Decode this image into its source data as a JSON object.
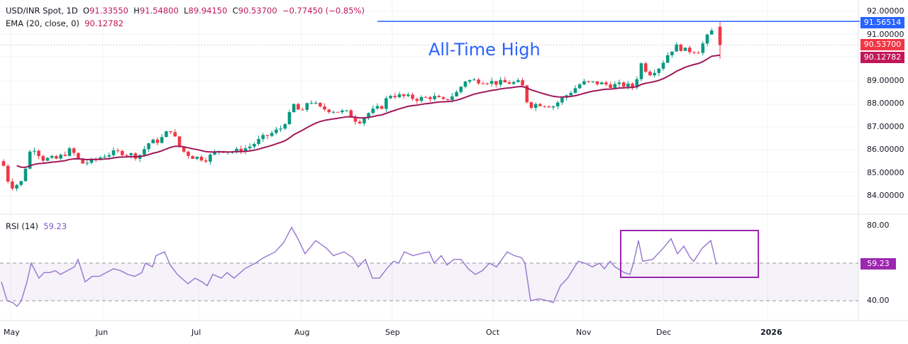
{
  "header": {
    "symbol": "USD/INR Spot, 1D",
    "open_label": "O",
    "open": "91.33550",
    "high_label": "H",
    "high": "91.54800",
    "low_label": "L",
    "low": "89.94150",
    "close_label": "C",
    "close": "90.53700",
    "change": "−0.77450 (−0.85%)",
    "ema_label": "EMA (20, close, 0)",
    "ema_value": "90.12782"
  },
  "annotation": "All-Time High",
  "rsi": {
    "label": "RSI (14)",
    "value": "59.23"
  },
  "price_tags": {
    "ath": {
      "text": "91.56514",
      "color": "#2962ff"
    },
    "close": {
      "text": "90.53700",
      "color": "#f23645"
    },
    "ema": {
      "text": "90.12782",
      "color": "#c2185b"
    },
    "rsi": {
      "text": "59.23",
      "color": "#9c27b0"
    }
  },
  "colors": {
    "up": "#089981",
    "down": "#f23645",
    "ema": "#a0185a",
    "rsi": "#9575cd",
    "ath_line": "#2962ff",
    "box": "#9c27b0"
  },
  "chart_data": [
    {
      "type": "candlestick",
      "title": "USD/INR Spot, 1D",
      "ylabel": "Price",
      "ylim": [
        83.6,
        92.2
      ],
      "y_ticks": [
        "92.00000",
        "91.00000",
        "90.00000",
        "89.00000",
        "88.00000",
        "87.00000",
        "86.00000",
        "85.00000",
        "84.00000"
      ],
      "x_ticks": [
        "May",
        "Jun",
        "Jul",
        "Aug",
        "Sep",
        "Oct",
        "Nov",
        "Dec",
        "2026"
      ],
      "horizontal_lines": [
        {
          "label": "All-Time High",
          "value": 91.56514
        }
      ],
      "series": [
        {
          "name": "EMA (20, close, 0)",
          "last": 90.12782
        },
        {
          "name": "USD/INR",
          "last_close": 90.537,
          "last_open": 91.3355,
          "last_high": 91.548,
          "last_low": 89.9415
        }
      ],
      "approx_close_path": [
        [
          "May",
          84.7
        ],
        [
          "Jun",
          85.7
        ],
        [
          "Jul",
          85.6
        ],
        [
          "Aug",
          87.8
        ],
        [
          "Sep",
          88.3
        ],
        [
          "Oct",
          88.9
        ],
        [
          "Nov",
          88.9
        ],
        [
          "Dec",
          90.4
        ],
        [
          "last",
          90.537
        ]
      ]
    },
    {
      "type": "line",
      "title": "RSI (14)",
      "ylim": [
        30,
        85
      ],
      "y_ticks": [
        "80.00",
        "40.00"
      ],
      "band": [
        40,
        60
      ],
      "last": 59.23,
      "annotation": "Rectangle highlighting RSI range in late Nov–Dec"
    }
  ]
}
